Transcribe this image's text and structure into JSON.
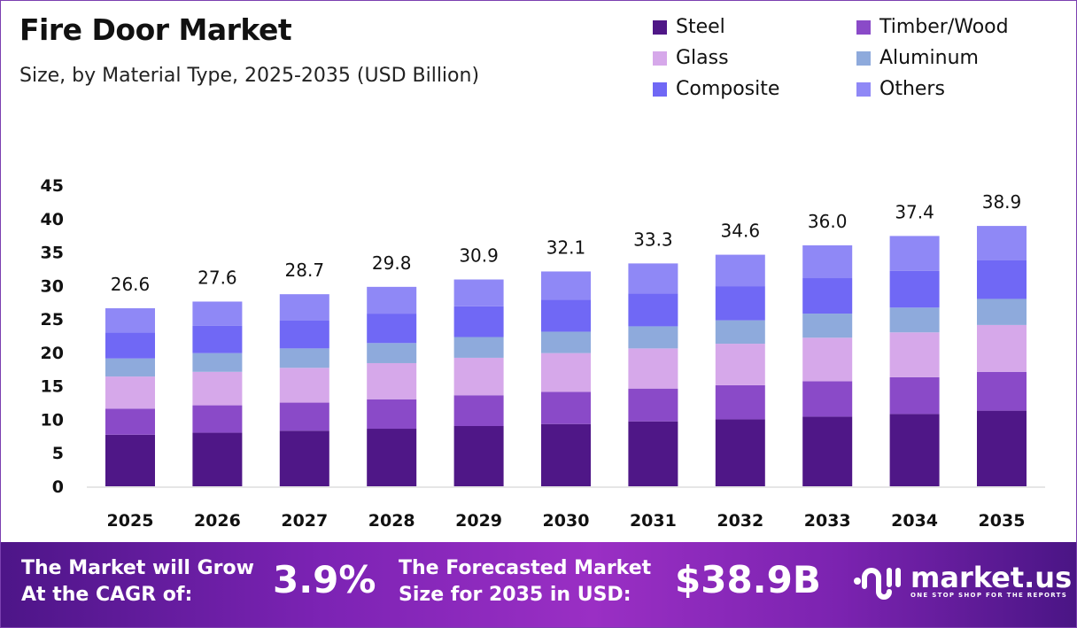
{
  "header": {
    "title": "Fire Door Market",
    "subtitle": "Size, by Material Type, 2025-2035 (USD Billion)"
  },
  "chart_data": {
    "type": "bar",
    "stacked": true,
    "categories": [
      "2025",
      "2026",
      "2027",
      "2028",
      "2029",
      "2030",
      "2031",
      "2032",
      "2033",
      "2034",
      "2035"
    ],
    "totals": [
      "26.6",
      "27.6",
      "28.7",
      "29.8",
      "30.9",
      "32.1",
      "33.3",
      "34.6",
      "36.0",
      "37.4",
      "38.9"
    ],
    "series": [
      {
        "name": "Steel",
        "color": "#4f1787",
        "values": [
          7.7,
          8.0,
          8.3,
          8.6,
          9.0,
          9.3,
          9.7,
          10.0,
          10.4,
          10.8,
          11.3
        ]
      },
      {
        "name": "Timber/Wood",
        "color": "#8a4ac8",
        "values": [
          3.9,
          4.1,
          4.2,
          4.4,
          4.6,
          4.8,
          4.9,
          5.1,
          5.3,
          5.5,
          5.8
        ]
      },
      {
        "name": "Glass",
        "color": "#d6a8ea",
        "values": [
          4.8,
          5.0,
          5.2,
          5.4,
          5.6,
          5.8,
          6.0,
          6.2,
          6.5,
          6.7,
          7.0
        ]
      },
      {
        "name": "Aluminum",
        "color": "#8eaadc",
        "values": [
          2.7,
          2.8,
          2.9,
          3.0,
          3.1,
          3.2,
          3.3,
          3.5,
          3.6,
          3.7,
          3.9
        ]
      },
      {
        "name": "Composite",
        "color": "#7068f5",
        "values": [
          3.9,
          4.1,
          4.2,
          4.4,
          4.6,
          4.8,
          4.9,
          5.1,
          5.3,
          5.5,
          5.8
        ]
      },
      {
        "name": "Others",
        "color": "#8f88f6",
        "values": [
          3.6,
          3.6,
          3.9,
          4.0,
          4.0,
          4.2,
          4.5,
          4.7,
          4.9,
          5.2,
          5.1
        ]
      }
    ],
    "yticks": [
      "0",
      "5",
      "10",
      "15",
      "20",
      "25",
      "30",
      "35",
      "40",
      "45"
    ],
    "ylim": [
      0,
      45
    ],
    "legend_position": "top-right",
    "grid": false
  },
  "footer": {
    "cagr_label_1": "The Market will Grow",
    "cagr_label_2": "At the CAGR of:",
    "cagr_value": "3.9%",
    "forecast_label_1": "The Forecasted Market",
    "forecast_label_2": "Size for 2035 in USD:",
    "forecast_value": "$38.9B",
    "logo_text": "market.us",
    "logo_tagline": "ONE STOP SHOP FOR THE REPORTS"
  }
}
